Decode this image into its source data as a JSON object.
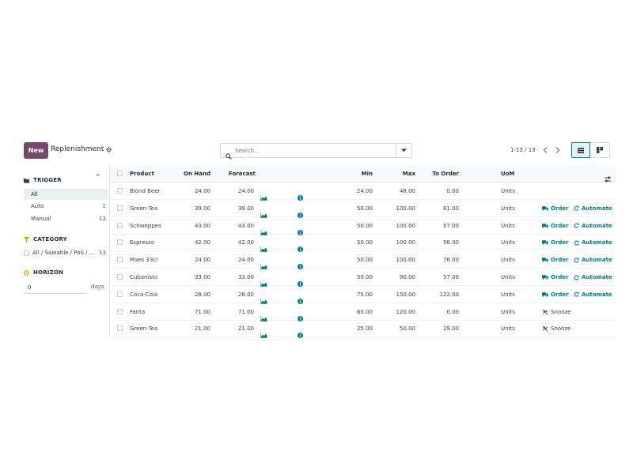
{
  "control_panel": {
    "new_label": "New",
    "title": "Replenishment",
    "search_placeholder": "Search...",
    "pager": "1-13 / 13"
  },
  "sidebar": {
    "trigger": {
      "heading": "TRIGGER",
      "items": [
        {
          "label": "All",
          "count": ""
        },
        {
          "label": "Auto",
          "count": "1"
        },
        {
          "label": "Manual",
          "count": "12"
        }
      ]
    },
    "category": {
      "heading": "CATEGORY",
      "item": {
        "label": "All / Saleable / PoS / ...",
        "count": "13"
      }
    },
    "horizon": {
      "heading": "HORIZON",
      "value": "0",
      "unit": "days"
    }
  },
  "table": {
    "columns": {
      "product": "Product",
      "on_hand": "On Hand",
      "forecast": "Forecast",
      "min": "Min",
      "max": "Max",
      "to_order": "To Order",
      "uom": "UoM"
    },
    "action_labels": {
      "order": "Order",
      "automate": "Automate",
      "snooze": "Snooze"
    },
    "rows": [
      {
        "product": "Blond Beer",
        "on_hand": "24.00",
        "forecast": "24.00",
        "min": "24.00",
        "max": "48.00",
        "to_order": "0.00",
        "uom": "Units",
        "actions": "none"
      },
      {
        "product": "Green Tea",
        "on_hand": "39.00",
        "forecast": "39.00",
        "min": "50.00",
        "max": "100.00",
        "to_order": "61.00",
        "uom": "Units",
        "actions": "order"
      },
      {
        "product": "Schweppes",
        "on_hand": "43.00",
        "forecast": "43.00",
        "min": "50.00",
        "max": "100.00",
        "to_order": "57.00",
        "uom": "Units",
        "actions": "order"
      },
      {
        "product": "Espresso",
        "on_hand": "42.00",
        "forecast": "42.00",
        "min": "50.00",
        "max": "100.00",
        "to_order": "58.00",
        "uom": "Units",
        "actions": "order"
      },
      {
        "product": "Maes 33cl",
        "on_hand": "24.00",
        "forecast": "24.00",
        "min": "50.00",
        "max": "100.00",
        "to_order": "76.00",
        "uom": "Units",
        "actions": "order"
      },
      {
        "product": "Cubanisto",
        "on_hand": "33.00",
        "forecast": "33.00",
        "min": "50.00",
        "max": "90.00",
        "to_order": "57.00",
        "uom": "Units",
        "actions": "order"
      },
      {
        "product": "Coca-Cola",
        "on_hand": "28.00",
        "forecast": "28.00",
        "min": "75.00",
        "max": "150.00",
        "to_order": "122.00",
        "uom": "Units",
        "actions": "order"
      },
      {
        "product": "Fanta",
        "on_hand": "71.00",
        "forecast": "71.00",
        "min": "60.00",
        "max": "120.00",
        "to_order": "0.00",
        "uom": "Units",
        "actions": "snooze"
      },
      {
        "product": "Green Tea",
        "on_hand": "21.00",
        "forecast": "21.00",
        "min": "25.00",
        "max": "50.00",
        "to_order": "29.00",
        "uom": "Units",
        "actions": "snooze"
      }
    ]
  },
  "colors": {
    "brand": "#714b67",
    "accent": "#017e84"
  },
  "icons": [
    "gear-icon",
    "search-icon",
    "caret-down-icon",
    "chevron-left-icon",
    "chevron-right-icon",
    "list-view-icon",
    "kanban-view-icon",
    "folder-icon",
    "filter-icon",
    "clock-icon",
    "collapse-icon",
    "chart-icon",
    "info-icon",
    "truck-icon",
    "refresh-icon",
    "snooze-icon",
    "optional-columns-icon"
  ]
}
